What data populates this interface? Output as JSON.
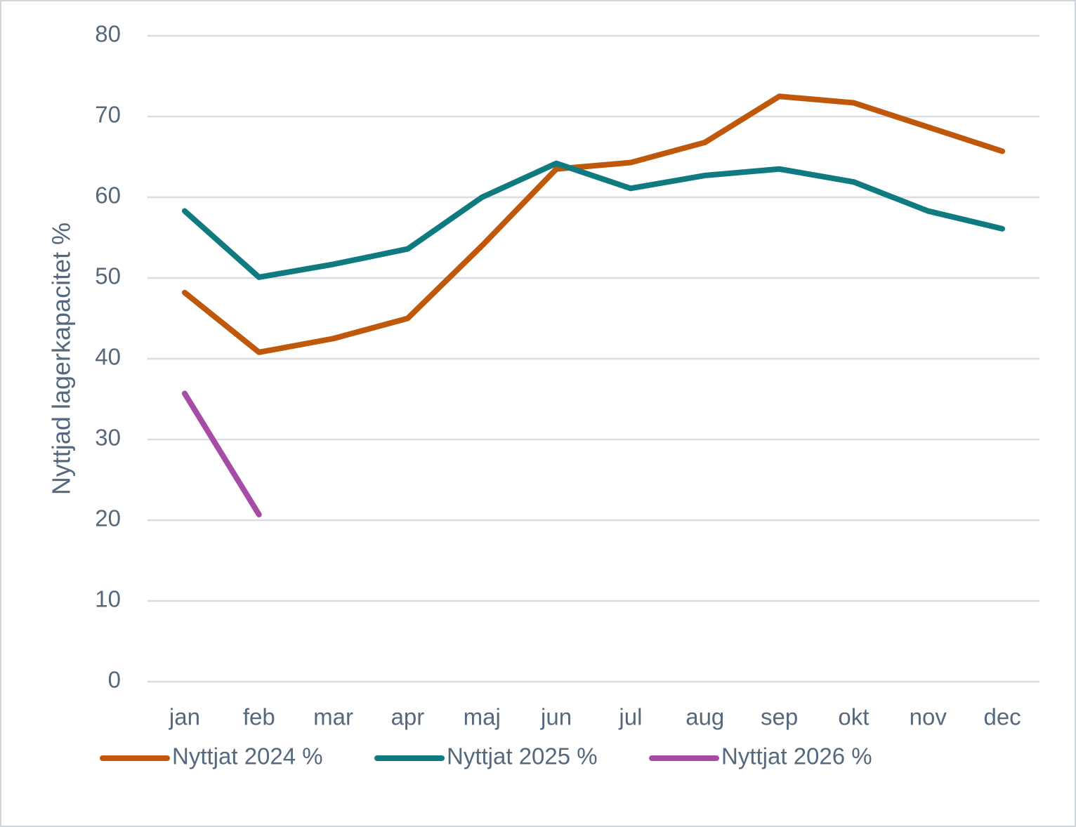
{
  "chart_data": {
    "type": "line",
    "y_label": "Nyttjad lagerkapacitet %",
    "categories": [
      "jan",
      "feb",
      "mar",
      "apr",
      "maj",
      "jun",
      "jul",
      "aug",
      "sep",
      "okt",
      "nov",
      "dec"
    ],
    "series": [
      {
        "name": "Nyttjat 2024 %",
        "color": "#c0580c",
        "values": [
          48.2,
          40.8,
          42.5,
          45.0,
          54.0,
          63.5,
          64.3,
          66.8,
          72.5,
          71.7,
          68.7,
          65.7
        ]
      },
      {
        "name": "Nyttjat 2025 %",
        "color": "#0f7b80",
        "values": [
          58.3,
          50.1,
          51.7,
          53.6,
          60.0,
          64.2,
          61.1,
          62.7,
          63.5,
          61.9,
          58.3,
          56.1
        ]
      },
      {
        "name": "Nyttjat 2026 %",
        "color": "#a64ca6",
        "values": [
          35.7,
          20.7,
          null,
          null,
          null,
          null,
          null,
          null,
          null,
          null,
          null,
          null
        ]
      }
    ],
    "ylim": [
      0,
      80
    ],
    "yticks": [
      0,
      10,
      20,
      30,
      40,
      50,
      60,
      70,
      80
    ],
    "grid": true,
    "legend": "bottom"
  }
}
